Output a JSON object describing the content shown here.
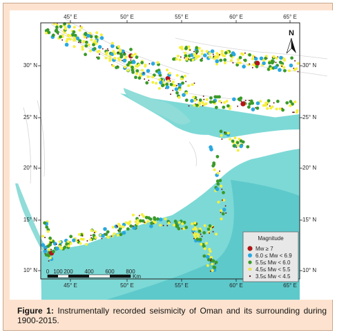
{
  "map": {
    "top_lon_labels": [
      "45° E",
      "50° E",
      "55° E",
      "60° E",
      "65° E"
    ],
    "bottom_lon_labels": [
      "45° E",
      "50° E",
      "55° E",
      "60° E",
      "65° E"
    ],
    "left_lat_labels": [
      "30° N",
      "25° N",
      "20° N",
      "15° N",
      "10° N"
    ],
    "right_lat_labels": [
      "30° N",
      "25° N",
      "20° N",
      "15° N",
      "10° N"
    ],
    "north_label": "N",
    "scale_bar": {
      "labels": [
        "0",
        "100",
        "200",
        "400",
        "600",
        "800"
      ],
      "unit": "Km"
    },
    "colors": {
      "land": "#ffffff",
      "shallow_sea": "#7dd9d6",
      "deep_sea": "#5ec9cb",
      "mountains": "#d9d9d9"
    }
  },
  "legend": {
    "title": "Magnitude",
    "items": [
      {
        "label": "Mw ≥ 7",
        "color": "#b5121b",
        "icon": "large-red-dot"
      },
      {
        "label": "6.0 ≤ Mw < 6.9",
        "color": "#2aa8e0",
        "icon": "blue-dot"
      },
      {
        "label": "5.5≤ Mw < 6.0",
        "color": "#3a9a2a",
        "icon": "green-dot"
      },
      {
        "label": "4.5≤ Mw < 5.5",
        "color": "#f5f03c",
        "icon": "yellow-dot"
      },
      {
        "label": "3.5≤ Mw < 4.5",
        "color": "#6b1a1a",
        "icon": "small-brown-dot"
      }
    ]
  },
  "caption": {
    "label": "Figure 1:",
    "text": " Instrumentally recorded seismicity of Oman and its surrounding during 1900-2015."
  }
}
